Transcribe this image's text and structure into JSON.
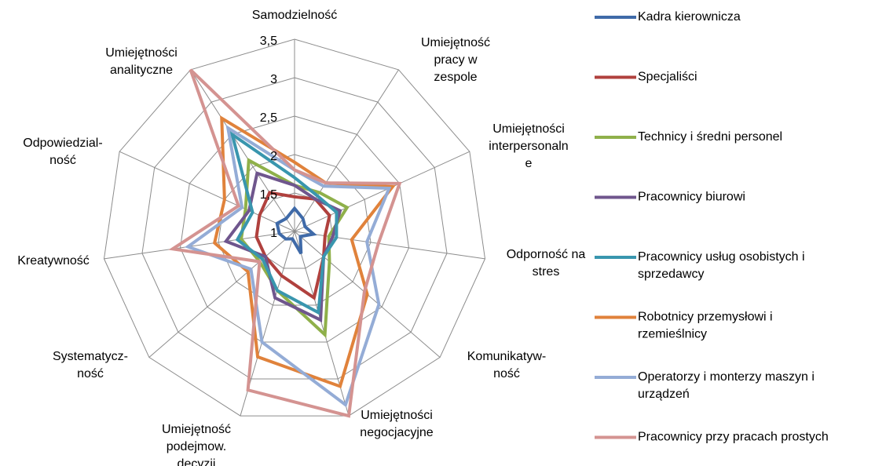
{
  "chart_data": {
    "type": "radar",
    "categories": [
      "Samodzielność",
      "Umiejętność\npracy w\nzespole",
      "Umiejętności\ninterpersonaln\ne",
      "Odporność na\nstres",
      "Komunikatyw-\nność",
      "Umiejętności\nnegocjacyjne",
      "Umiejętność\npodejmow.\ndecyzji",
      "Systematycz-\nność",
      "Kreatywność",
      "Odpowiedzial-\nność",
      "Umiejętności\nanalityczne"
    ],
    "series": [
      {
        "name": "Kadra kierownicza",
        "color": "#3f6aa8",
        "values": [
          1.3,
          1.2,
          1.15,
          1.25,
          1.1,
          1.3,
          1.1,
          1.15,
          1.2,
          1.25,
          1.2
        ]
      },
      {
        "name": "Specjaliści",
        "color": "#b0413e",
        "values": [
          1.45,
          1.5,
          1.5,
          1.4,
          1.5,
          1.9,
          1.6,
          1.5,
          1.5,
          1.5,
          1.6
        ]
      },
      {
        "name": "Technicy i średni personel",
        "color": "#8fb04a",
        "values": [
          1.6,
          1.6,
          1.75,
          1.45,
          1.6,
          2.4,
          1.8,
          1.6,
          1.7,
          1.7,
          2.1
        ]
      },
      {
        "name": "Pracownicy biurowi",
        "color": "#6f568d",
        "values": [
          1.6,
          1.5,
          1.65,
          1.5,
          1.5,
          2.2,
          1.9,
          1.5,
          1.9,
          1.65,
          1.9
        ]
      },
      {
        "name": "Pracownicy usług osobistych i\nsprzedawcy",
        "color": "#3996ae",
        "values": [
          1.7,
          1.55,
          1.6,
          1.55,
          1.5,
          2.1,
          1.8,
          1.55,
          1.75,
          1.6,
          2.5
        ]
      },
      {
        "name": "Robotnicy przemysłowi i\nrzemieślnicy",
        "color": "#e0823b",
        "values": [
          1.9,
          1.75,
          2.4,
          1.75,
          2.25,
          3.1,
          2.7,
          1.8,
          2.05,
          2.0,
          2.75
        ]
      },
      {
        "name": "Operatorzy i monterzy maszyn i\nurządzeń",
        "color": "#94acd6",
        "values": [
          1.8,
          1.7,
          2.35,
          1.95,
          2.45,
          3.35,
          2.5,
          1.75,
          2.4,
          1.75,
          2.6
        ]
      },
      {
        "name": "Pracownicy przy pracach prostych",
        "color": "#d49391",
        "values": [
          1.8,
          1.75,
          2.5,
          2.1,
          2.2,
          3.5,
          3.15,
          1.6,
          2.6,
          1.8,
          3.5
        ]
      }
    ],
    "ylim": [
      1,
      3.5
    ],
    "yticks": [
      1,
      {
        "value": 1.5,
        "label": "1,5"
      },
      2,
      {
        "value": 2.5,
        "label": "2,5"
      },
      3,
      {
        "value": 3.5,
        "label": "3,5"
      }
    ],
    "grid": true
  }
}
